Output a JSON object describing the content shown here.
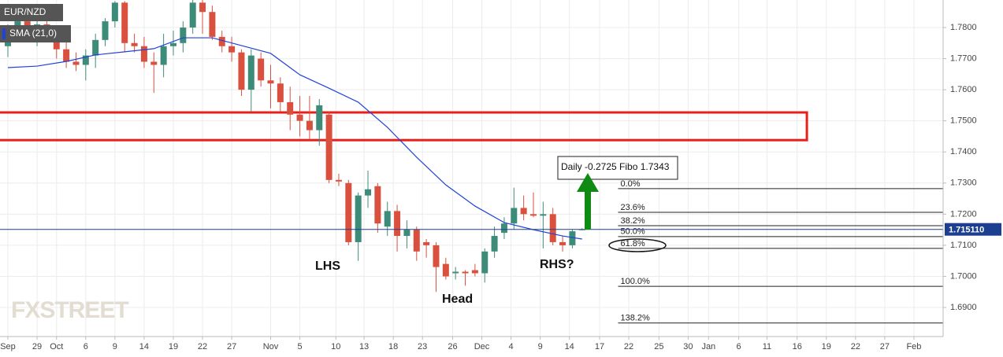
{
  "chart_data": {
    "type": "candlestick",
    "xlim": [
      -0.81,
      96.1
    ],
    "ylim": [
      1.68065,
      1.78885
    ],
    "grid": true,
    "xticks": [
      {
        "value": 0,
        "label": "Sep"
      },
      {
        "value": 3,
        "label": "29"
      },
      {
        "value": 5,
        "label": "Oct"
      },
      {
        "value": 8,
        "label": "6"
      },
      {
        "value": 11,
        "label": "9"
      },
      {
        "value": 14,
        "label": "14"
      },
      {
        "value": 17,
        "label": "19"
      },
      {
        "value": 20,
        "label": "22"
      },
      {
        "value": 23,
        "label": "27"
      },
      {
        "value": 27,
        "label": "Nov"
      },
      {
        "value": 30,
        "label": "5"
      },
      {
        "value": 33.7,
        "label": "10"
      },
      {
        "value": 36.6,
        "label": "13"
      },
      {
        "value": 39.6,
        "label": "18"
      },
      {
        "value": 42.6,
        "label": "23"
      },
      {
        "value": 45.7,
        "label": "26"
      },
      {
        "value": 48.7,
        "label": "Dec"
      },
      {
        "value": 51.7,
        "label": "4"
      },
      {
        "value": 54.7,
        "label": "9"
      },
      {
        "value": 57.7,
        "label": "14"
      },
      {
        "value": 60.8,
        "label": "17"
      },
      {
        "value": 63.8,
        "label": "22"
      },
      {
        "value": 66.9,
        "label": "25"
      },
      {
        "value": 69.9,
        "label": "30"
      },
      {
        "value": 72,
        "label": "Jan"
      },
      {
        "value": 75.1,
        "label": "6"
      },
      {
        "value": 78,
        "label": "11"
      },
      {
        "value": 81.1,
        "label": "16"
      },
      {
        "value": 84.1,
        "label": "19"
      },
      {
        "value": 87.1,
        "label": "22"
      },
      {
        "value": 90.1,
        "label": "27"
      },
      {
        "value": 93.1,
        "label": "Feb"
      }
    ],
    "yticks": [
      {
        "value": 1.69,
        "label": "1.6900"
      },
      {
        "value": 1.7,
        "label": "1.7000"
      },
      {
        "value": 1.71,
        "label": "1.7100"
      },
      {
        "value": 1.72,
        "label": "1.7200"
      },
      {
        "value": 1.73,
        "label": "1.7300"
      },
      {
        "value": 1.74,
        "label": "1.7400"
      },
      {
        "value": 1.75,
        "label": "1.7500"
      },
      {
        "value": 1.76,
        "label": "1.7600"
      },
      {
        "value": 1.77,
        "label": "1.7700"
      },
      {
        "value": 1.78,
        "label": "1.7800"
      }
    ],
    "series": [
      {
        "name": "EUR/NZD",
        "type": "candlestick",
        "up_color": "#3d8c7a",
        "down_color": "#d9503f",
        "x": [
          0,
          1,
          2,
          3,
          4,
          5,
          6,
          7,
          8,
          9,
          10,
          11,
          12,
          13,
          14,
          15,
          16,
          17,
          18,
          19,
          20,
          21,
          22,
          23,
          24,
          25,
          26,
          27,
          28,
          29,
          30,
          31,
          32,
          33,
          34,
          35,
          36,
          37,
          38,
          39,
          40,
          41,
          42,
          43,
          44,
          45,
          46,
          47,
          48,
          49,
          50,
          51,
          52,
          53,
          54,
          55,
          56,
          57,
          58,
          59
        ],
        "open": [
          1.774,
          1.779,
          1.782,
          1.779,
          1.781,
          1.777,
          1.773,
          1.769,
          1.768,
          1.771,
          1.776,
          1.782,
          1.788,
          1.775,
          1.774,
          1.769,
          1.768,
          1.774,
          1.775,
          1.78,
          1.788,
          1.785,
          1.777,
          1.774,
          1.772,
          1.76,
          1.77,
          1.763,
          1.762,
          1.756,
          1.752,
          1.75,
          1.747,
          1.752,
          1.731,
          1.73,
          1.711,
          1.726,
          1.729,
          1.716,
          1.721,
          1.713,
          1.715,
          1.711,
          1.71,
          1.704,
          1.701,
          1.7015,
          1.702,
          1.701,
          1.708,
          1.714,
          1.717,
          1.722,
          1.72,
          1.7195,
          1.72,
          1.711,
          1.71,
          1.715
        ],
        "high": [
          1.781,
          1.784,
          1.785,
          1.783,
          1.785,
          1.78,
          1.776,
          1.772,
          1.773,
          1.778,
          1.783,
          1.7885,
          1.7885,
          1.778,
          1.777,
          1.772,
          1.778,
          1.779,
          1.782,
          1.7889,
          1.7889,
          1.787,
          1.779,
          1.777,
          1.773,
          1.773,
          1.772,
          1.768,
          1.764,
          1.761,
          1.758,
          1.758,
          1.757,
          1.753,
          1.733,
          1.731,
          1.727,
          1.734,
          1.73,
          1.724,
          1.723,
          1.718,
          1.716,
          1.712,
          1.711,
          1.706,
          1.703,
          1.702,
          1.704,
          1.709,
          1.716,
          1.719,
          1.7285,
          1.726,
          1.727,
          1.724,
          1.722,
          1.713,
          1.715,
          1.7155
        ],
        "low": [
          1.7705,
          1.776,
          1.777,
          1.774,
          1.776,
          1.77,
          1.767,
          1.766,
          1.763,
          1.767,
          1.774,
          1.78,
          1.772,
          1.772,
          1.767,
          1.759,
          1.764,
          1.771,
          1.772,
          1.778,
          1.778,
          1.776,
          1.772,
          1.769,
          1.758,
          1.753,
          1.761,
          1.754,
          1.753,
          1.747,
          1.745,
          1.744,
          1.742,
          1.73,
          1.729,
          1.71,
          1.705,
          1.722,
          1.714,
          1.713,
          1.708,
          1.709,
          1.705,
          1.706,
          1.695,
          1.699,
          1.699,
          1.697,
          1.7,
          1.698,
          1.706,
          1.712,
          1.715,
          1.718,
          1.719,
          1.709,
          1.71,
          1.708,
          1.709,
          1.7148
        ],
        "close": [
          1.779,
          1.782,
          1.779,
          1.781,
          1.778,
          1.773,
          1.769,
          1.768,
          1.771,
          1.776,
          1.782,
          1.788,
          1.775,
          1.774,
          1.769,
          1.768,
          1.774,
          1.775,
          1.78,
          1.788,
          1.785,
          1.777,
          1.774,
          1.772,
          1.76,
          1.771,
          1.763,
          1.762,
          1.756,
          1.752,
          1.75,
          1.747,
          1.755,
          1.731,
          1.7305,
          1.711,
          1.726,
          1.728,
          1.717,
          1.721,
          1.713,
          1.715,
          1.708,
          1.71,
          1.703,
          1.7,
          1.7015,
          1.701,
          1.701,
          1.708,
          1.713,
          1.717,
          1.722,
          1.72,
          1.7195,
          1.72,
          1.711,
          1.71,
          1.7145,
          1.7151
        ]
      },
      {
        "name": "SMA (21,0)",
        "type": "line",
        "color": "#2142d8",
        "x": [
          0,
          3,
          6,
          9,
          12,
          15,
          18,
          21,
          24,
          27,
          30,
          33,
          36,
          39,
          42,
          45,
          48,
          51,
          54,
          57,
          59
        ],
        "values": [
          1.7671,
          1.7676,
          1.7691,
          1.7712,
          1.7722,
          1.7732,
          1.7767,
          1.7767,
          1.7742,
          1.7717,
          1.7648,
          1.7605,
          1.756,
          1.7479,
          1.7383,
          1.7294,
          1.7226,
          1.7173,
          1.715,
          1.713,
          1.712
        ]
      }
    ],
    "last_price": {
      "value": 1.71511,
      "label": "1.715110",
      "color": "#1d3f8f"
    },
    "zone": {
      "range": [
        1.7438,
        1.7527
      ],
      "x_end": 82.1,
      "color": "#e8201c"
    },
    "fibo": {
      "x_start": 62.7,
      "levels": [
        {
          "value": 1.7282,
          "label": "0.0%"
        },
        {
          "value": 1.7206,
          "label": "23.6%"
        },
        {
          "value": 1.7163,
          "label": "38.2%"
        },
        {
          "value": 1.7128,
          "label": "50.0%"
        },
        {
          "value": 1.709,
          "label": "61.8%"
        },
        {
          "value": 1.6968,
          "label": "100.0%"
        },
        {
          "value": 1.685,
          "label": "138.2%"
        }
      ]
    },
    "annotations": {
      "box": "Daily -0.2725 Fibo 1.7343",
      "lhs": "LHS",
      "head": "Head",
      "rhs": "RHS?"
    },
    "watermark": "FXSTREET"
  }
}
